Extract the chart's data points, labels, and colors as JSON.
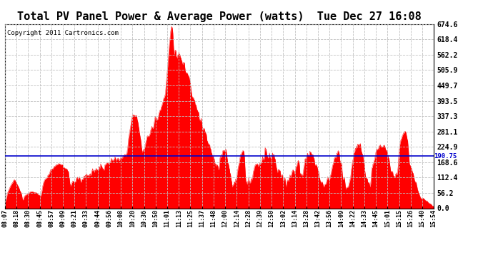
{
  "title": "Total PV Panel Power & Average Power (watts)  Tue Dec 27 16:08",
  "copyright": "Copyright 2011 Cartronics.com",
  "ymax": 674.6,
  "ymin": 0.0,
  "ytick_values": [
    0.0,
    56.2,
    112.4,
    168.6,
    224.9,
    281.1,
    337.3,
    393.5,
    449.7,
    505.9,
    562.2,
    618.4,
    674.6
  ],
  "avg_line_y": 190.75,
  "avg_line_label": "190.75",
  "fill_color": "#FF0000",
  "avg_color": "#0000CC",
  "bg_color": "#FFFFFF",
  "grid_color": "#C0C0C0",
  "border_color": "#000000",
  "title_fontsize": 11,
  "copyright_fontsize": 6.5,
  "xtick_labels": [
    "08:07",
    "08:18",
    "08:30",
    "08:45",
    "08:57",
    "09:09",
    "09:21",
    "09:33",
    "09:44",
    "09:56",
    "10:08",
    "10:20",
    "10:36",
    "10:50",
    "11:01",
    "11:13",
    "11:25",
    "11:37",
    "11:48",
    "12:00",
    "12:14",
    "12:28",
    "12:39",
    "12:50",
    "13:02",
    "13:14",
    "13:28",
    "13:42",
    "13:56",
    "14:09",
    "14:22",
    "14:33",
    "14:45",
    "15:01",
    "15:15",
    "15:26",
    "15:40",
    "15:54"
  ]
}
